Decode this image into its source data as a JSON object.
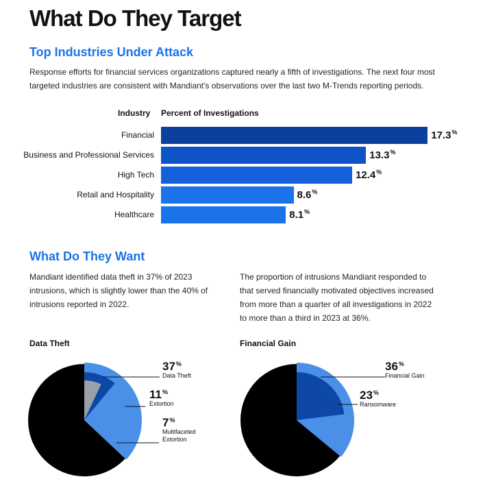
{
  "page": {
    "title": "What Do They Target",
    "section1": {
      "heading": "Top Industries Under Attack",
      "intro_line1": "Response efforts for financial services organizations captured nearly a fifth of investigations. The next four most",
      "intro_line2": "targeted industries are consistent with Mandiant's observations over the last two M-Trends reporting periods."
    },
    "section2": {
      "heading": "What Do They Want",
      "left_lines": [
        "Mandiant identified data theft in 37% of 2023",
        "intrusions, which is slightly lower than the 40% of",
        "intrusions reported in 2022."
      ],
      "right_lines": [
        "The proportion of intrusions Mandiant responded to",
        "that served financially motivated objectives increased",
        "from more than a quarter of all investigations in 2022",
        "to more than a third in 2023 at 36%."
      ]
    }
  },
  "chart_data": [
    {
      "type": "bar",
      "orientation": "horizontal",
      "column_headers": {
        "category": "Industry",
        "value": "Percent of Investigations"
      },
      "categories": [
        "Financial",
        "Business and Professional Services",
        "High Tech",
        "Retail and Hospitality",
        "Healthcare"
      ],
      "values": [
        17.3,
        13.3,
        12.4,
        8.6,
        8.1
      ],
      "value_labels": [
        "17.3",
        "13.3",
        "12.4",
        "8.6",
        "8.1"
      ],
      "unit": "%",
      "colors": [
        "#0d3f9e",
        "#0f53c9",
        "#1561dc",
        "#1a73e8",
        "#1a73e8"
      ]
    },
    {
      "type": "pie",
      "title": "Data Theft",
      "slices": [
        {
          "label": "Data Theft",
          "value": 37,
          "display": "37",
          "color": "#4a90e8"
        },
        {
          "label": "Extortion",
          "value": 11,
          "display": "11",
          "color": "#0d47a8"
        },
        {
          "label": "Multifaceted Extortion",
          "label_lines": [
            "Multifaceted",
            "Extortion"
          ],
          "value": 7,
          "display": "7",
          "color": "#9aa0a6"
        }
      ],
      "remainder_color": "#000000",
      "unit": "%"
    },
    {
      "type": "pie",
      "title": "Financial Gain",
      "slices": [
        {
          "label": "Financial Gain",
          "value": 36,
          "display": "36",
          "color": "#4a90e8"
        },
        {
          "label": "Ransomware",
          "value": 23,
          "display": "23",
          "color": "#0d47a8"
        }
      ],
      "remainder_color": "#000000",
      "unit": "%"
    }
  ]
}
